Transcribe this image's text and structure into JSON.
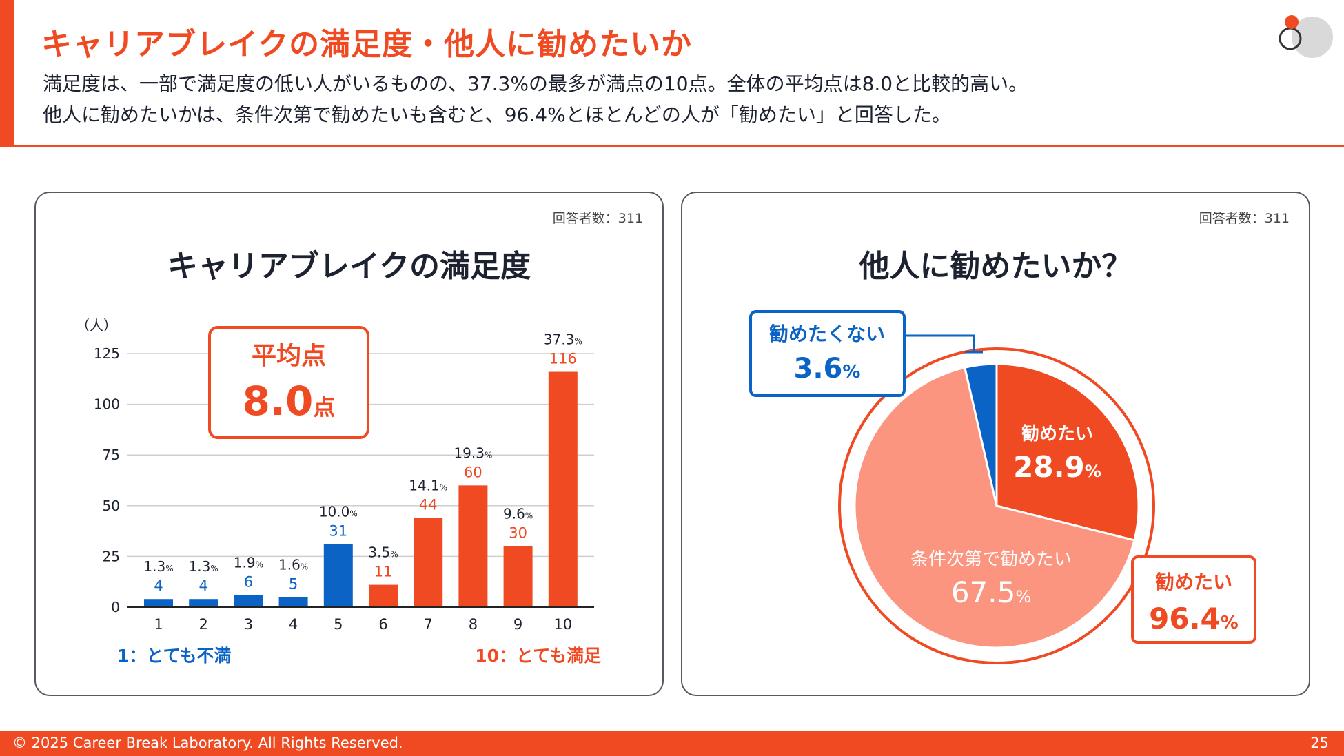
{
  "header": {
    "title": "キャリアブレイクの満足度・他人に勧めたいか",
    "subtitle_line1": "満足度は、一部で満足度の低い人がいるものの、37.3%の最多が満点の10点。全体の平均点は8.0と比較的高い。",
    "subtitle_line2": "他人に勧めたいかは、条件次第で勧めたいも含むと、96.4%とほとんどの人が「勧めたい」と回答した。"
  },
  "colors": {
    "accent": "#f04a23",
    "blue": "#0b63c5",
    "salmon": "#fc9580",
    "text": "#1d2230"
  },
  "chart_data": [
    {
      "type": "bar",
      "title": "キャリアブレイクの満足度",
      "respondents": "回答者数：311",
      "ylabel": "（人）",
      "ylim": [
        0,
        125
      ],
      "yticks": [
        "0",
        "25",
        "50",
        "75",
        "100",
        "125"
      ],
      "categories": [
        "1",
        "2",
        "3",
        "4",
        "5",
        "6",
        "7",
        "8",
        "9",
        "10"
      ],
      "values": [
        4,
        4,
        6,
        5,
        31,
        11,
        44,
        60,
        30,
        116
      ],
      "percents": [
        "1.3",
        "1.3",
        "1.9",
        "1.6",
        "10.0",
        "3.5",
        "14.1",
        "19.3",
        "9.6",
        "37.3"
      ],
      "percent_unit": "%",
      "average_label": "平均点",
      "average_value": "8.0",
      "average_unit": "点",
      "scale_low_label": "1：とても不満",
      "scale_high_label": "10：とても満足"
    },
    {
      "type": "pie",
      "title": "他人に勧めたいか？",
      "respondents": "回答者数：311",
      "slices": [
        {
          "name": "勧めたい",
          "value": "28.9"
        },
        {
          "name": "条件次第で勧めたい",
          "value": "67.5"
        },
        {
          "name": "勧めたくない",
          "value": "3.6"
        }
      ],
      "unit": "%",
      "total_label": "勧めたい",
      "total_value": "96.4"
    }
  ],
  "footer": {
    "copyright": "© 2025 Career Break Laboratory. All Rights Reserved.",
    "page": "25"
  }
}
